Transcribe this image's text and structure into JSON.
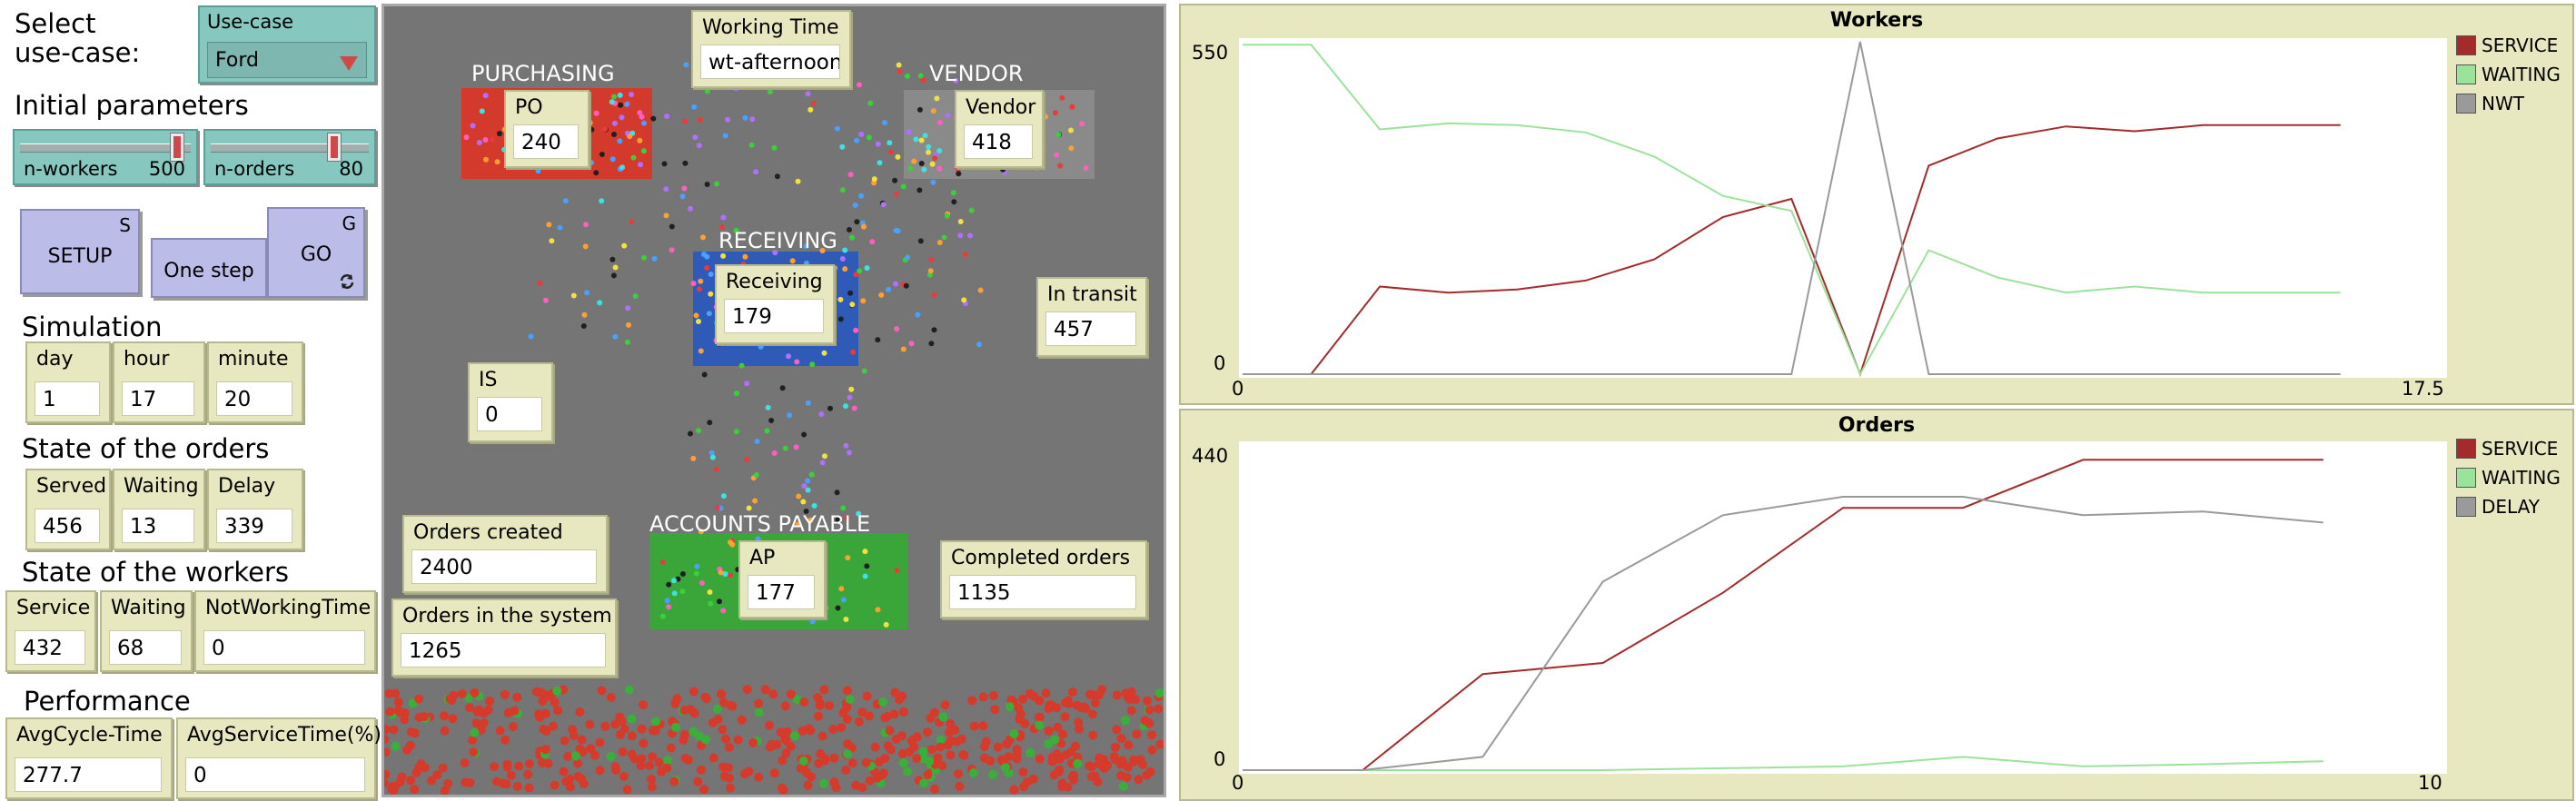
{
  "controls": {
    "select_label_1": "Select",
    "select_label_2": "use-case:",
    "usecase": {
      "name": "Use-case",
      "value": "Ford"
    },
    "initial_params_label": "Initial parameters",
    "n_workers": {
      "name": "n-workers",
      "value": "500",
      "fraction": 0.95
    },
    "n_orders": {
      "name": "n-orders",
      "value": "80",
      "fraction": 0.8
    },
    "setup": {
      "label": "SETUP",
      "key": "S"
    },
    "one_step": {
      "label": "One step"
    },
    "go": {
      "label": "GO",
      "key": "G"
    }
  },
  "simulation": {
    "label": "Simulation",
    "day": {
      "name": "day",
      "value": "1"
    },
    "hour": {
      "name": "hour",
      "value": "17"
    },
    "minute": {
      "name": "minute",
      "value": "20"
    }
  },
  "orders_state": {
    "label": "State of the orders",
    "served": {
      "name": "Served",
      "value": "456"
    },
    "waiting": {
      "name": "Waiting",
      "value": "13"
    },
    "delay": {
      "name": "Delay",
      "value": "339"
    }
  },
  "workers_state": {
    "label": "State of the workers",
    "service": {
      "name": "Service",
      "value": "432"
    },
    "waiting": {
      "name": "Waiting",
      "value": "68"
    },
    "nwt": {
      "name": "NotWorkingTime",
      "value": "0"
    }
  },
  "performance": {
    "label": "Performance",
    "avg_cycle": {
      "name": "AvgCycle-Time",
      "value": "277.7"
    },
    "avg_service": {
      "name": "AvgServiceTime(%)",
      "value": "0"
    }
  },
  "world": {
    "labels": {
      "purchasing": "PURCHASING",
      "vendor": "VENDOR",
      "receiving": "RECEIVING",
      "ap": "ACCOUNTS PAYABLE"
    },
    "monitors": {
      "working_time": {
        "name": "Working Time",
        "value": "wt-afternoon"
      },
      "po": {
        "name": "PO",
        "value": "240"
      },
      "vendor": {
        "name": "Vendor",
        "value": "418"
      },
      "receiving": {
        "name": "Receiving",
        "value": "179"
      },
      "in_transit": {
        "name": "In transit",
        "value": "457"
      },
      "is": {
        "name": "IS",
        "value": "0"
      },
      "orders_created": {
        "name": "Orders created",
        "value": "2400"
      },
      "orders_in_system": {
        "name": "Orders in the system",
        "value": "1265"
      },
      "ap": {
        "name": "AP",
        "value": "177"
      },
      "completed": {
        "name": "Completed orders",
        "value": "1135"
      }
    },
    "colors": {
      "background": "#757575",
      "purchasing": "#d33a2c",
      "receiving": "#2f5ab8",
      "ap": "#3aa63a",
      "vendor": "#8a8a8a"
    }
  },
  "chart_data": [
    {
      "type": "line",
      "title": "Workers",
      "xlim": [
        0,
        17.5
      ],
      "ylim": [
        0,
        550
      ],
      "x_labels": [
        "0",
        "17.5"
      ],
      "y_labels": [
        "550",
        "0"
      ],
      "legend_position": "right",
      "series": [
        {
          "name": "SERVICE",
          "color": "#a52a2a",
          "points": [
            [
              1,
              0
            ],
            [
              2,
              145
            ],
            [
              3,
              135
            ],
            [
              4,
              140
            ],
            [
              5,
              155
            ],
            [
              6,
              190
            ],
            [
              7,
              260
            ],
            [
              8,
              290
            ],
            [
              9,
              0
            ],
            [
              10,
              345
            ],
            [
              11,
              390
            ],
            [
              12,
              410
            ],
            [
              13,
              402
            ],
            [
              14,
              412
            ],
            [
              15,
              412
            ],
            [
              16,
              412
            ]
          ]
        },
        {
          "name": "WAITING",
          "color": "#9be39b",
          "points": [
            [
              0,
              545
            ],
            [
              1,
              545
            ],
            [
              2,
              405
            ],
            [
              3,
              415
            ],
            [
              4,
              412
            ],
            [
              5,
              400
            ],
            [
              6,
              360
            ],
            [
              7,
              295
            ],
            [
              8,
              270
            ],
            [
              9,
              0
            ],
            [
              10,
              205
            ],
            [
              11,
              160
            ],
            [
              12,
              135
            ],
            [
              13,
              145
            ],
            [
              14,
              135
            ],
            [
              15,
              135
            ],
            [
              16,
              135
            ]
          ]
        },
        {
          "name": "NWT",
          "color": "#9a9a9a",
          "points": [
            [
              0,
              0
            ],
            [
              8,
              0
            ],
            [
              9,
              550
            ],
            [
              10,
              0
            ],
            [
              16,
              0
            ]
          ]
        }
      ]
    },
    {
      "type": "line",
      "title": "Orders",
      "xlim": [
        0,
        10
      ],
      "ylim": [
        0,
        440
      ],
      "x_labels": [
        "0",
        "10"
      ],
      "y_labels": [
        "440",
        "0"
      ],
      "legend_position": "right",
      "series": [
        {
          "name": "SERVICE",
          "color": "#a52a2a",
          "points": [
            [
              0,
              0
            ],
            [
              1,
              0
            ],
            [
              2,
              130
            ],
            [
              3,
              145
            ],
            [
              4,
              240
            ],
            [
              5,
              355
            ],
            [
              6,
              355
            ],
            [
              7,
              420
            ],
            [
              8,
              420
            ],
            [
              9,
              420
            ]
          ]
        },
        {
          "name": "WAITING",
          "color": "#9be39b",
          "points": [
            [
              0,
              0
            ],
            [
              3,
              0
            ],
            [
              5,
              5
            ],
            [
              6,
              18
            ],
            [
              7,
              5
            ],
            [
              8,
              8
            ],
            [
              9,
              12
            ]
          ]
        },
        {
          "name": "DELAY",
          "color": "#9a9a9a",
          "points": [
            [
              0,
              0
            ],
            [
              1,
              0
            ],
            [
              2,
              18
            ],
            [
              3,
              255
            ],
            [
              4,
              345
            ],
            [
              5,
              370
            ],
            [
              6,
              370
            ],
            [
              7,
              345
            ],
            [
              8,
              350
            ],
            [
              9,
              335
            ]
          ]
        }
      ]
    }
  ]
}
